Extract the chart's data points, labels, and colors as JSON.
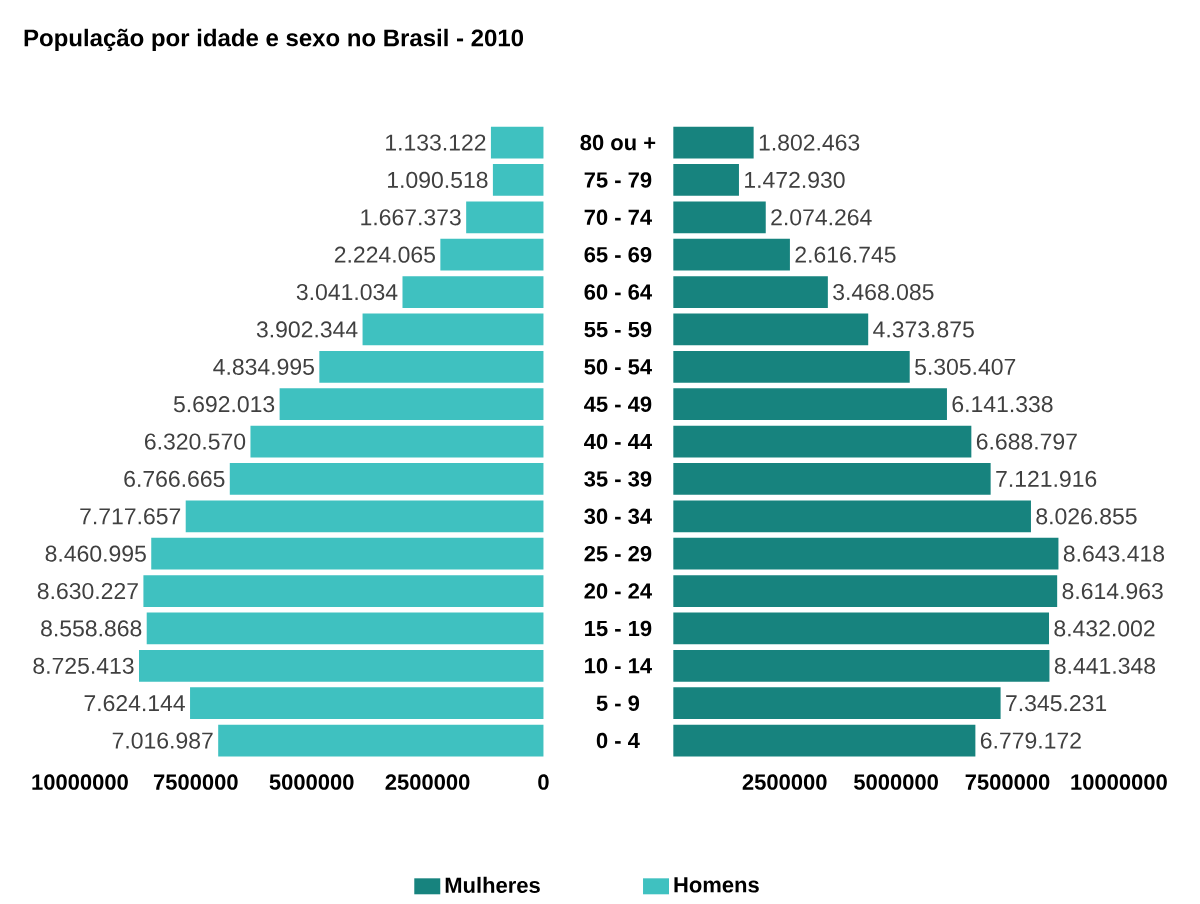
{
  "chart_data": [
    {
      "type": "bar",
      "orientation": "horizontal",
      "title": "População por idade e sexo no Brasil - 2010",
      "categories": [
        "80 ou +",
        "75 - 79",
        "70 - 74",
        "65 - 69",
        "60 - 64",
        "55 - 59",
        "50 - 54",
        "45 - 49",
        "40 - 44",
        "35 - 39",
        "30 - 34",
        "25 - 29",
        "20 - 24",
        "15 - 19",
        "10 - 14",
        "5 - 9",
        "0 - 4"
      ],
      "xlim": [
        10000000,
        0
      ],
      "xticks": [
        0,
        2500000,
        5000000,
        7500000,
        10000000
      ],
      "legend": "bottom",
      "series": [
        {
          "name": "Homens",
          "color": "#3fc1c0",
          "values": [
            1133122,
            1090518,
            1667373,
            2224065,
            3041034,
            3902344,
            4834995,
            5692013,
            6320570,
            6766665,
            7717657,
            8460995,
            8630227,
            8558868,
            8725413,
            7624144,
            7016987
          ],
          "value_labels": [
            "1.133.122",
            "1.090.518",
            "1.667.373",
            "2.224.065",
            "3.041.034",
            "3.902.344",
            "4.834.995",
            "5.692.013",
            "6.320.570",
            "6.766.665",
            "7.717.657",
            "8.460.995",
            "8.630.227",
            "8.558.868",
            "8.725.413",
            "7.624.144",
            "7.016.987"
          ]
        }
      ]
    },
    {
      "type": "bar",
      "orientation": "horizontal",
      "xlim": [
        0,
        10000000
      ],
      "xticks": [
        2500000,
        5000000,
        7500000,
        10000000
      ],
      "legend": "bottom",
      "series": [
        {
          "name": "Mulheres",
          "color": "#17837e",
          "values": [
            1802463,
            1472930,
            2074264,
            2616745,
            3468085,
            4373875,
            5305407,
            6141338,
            6688797,
            7121916,
            8026855,
            8643418,
            8614963,
            8432002,
            8441348,
            7345231,
            6779172
          ],
          "value_labels": [
            "1.802.463",
            "1.472.930",
            "2.074.264",
            "2.616.745",
            "3.468.085",
            "4.373.875",
            "5.305.407",
            "6.141.338",
            "6.688.797",
            "7.121.916",
            "8.026.855",
            "8.643.418",
            "8.614.963",
            "8.432.002",
            "8.441.348",
            "7.345.231",
            "6.779.172"
          ]
        }
      ]
    }
  ]
}
